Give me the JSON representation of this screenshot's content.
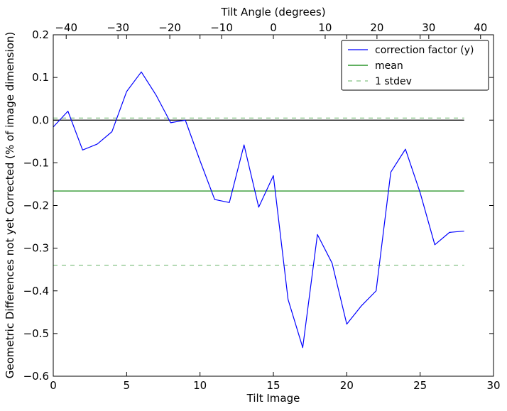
{
  "chart_data": {
    "type": "line",
    "title": "",
    "xlabel": "Tilt Image",
    "ylabel": "Geometric Differences not yet Corrected (% of image dimension)",
    "top_xlabel": "Tilt Angle (degrees)",
    "xlim": [
      0,
      30
    ],
    "ylim": [
      -0.6,
      0.2
    ],
    "top_xlim": [
      -42.5,
      42.5
    ],
    "x_ticks": [
      0,
      5,
      10,
      15,
      20,
      25,
      30
    ],
    "y_ticks": [
      -0.6,
      -0.5,
      -0.4,
      -0.3,
      -0.2,
      -0.1,
      0.0,
      0.1,
      0.2
    ],
    "top_x_ticks": [
      -40,
      -30,
      -20,
      -10,
      0,
      10,
      20,
      30,
      40
    ],
    "x_tick_labels": [
      "0",
      "5",
      "10",
      "15",
      "20",
      "25",
      "30"
    ],
    "y_tick_labels": [
      "−0.6",
      "−0.5",
      "−0.4",
      "−0.3",
      "−0.2",
      "−0.1",
      "0.0",
      "0.1",
      "0.2"
    ],
    "top_x_tick_labels": [
      "−40",
      "−30",
      "−20",
      "−10",
      "0",
      "10",
      "20",
      "30",
      "40"
    ],
    "grid": false,
    "legend_position": "top-right",
    "series": [
      {
        "name": "correction factor (y)",
        "color": "#0000ff",
        "style": "solid",
        "x": [
          0,
          1,
          2,
          3,
          4,
          5,
          6,
          7,
          8,
          9,
          10,
          11,
          12,
          13,
          14,
          15,
          16,
          17,
          18,
          19,
          20,
          21,
          22,
          23,
          24,
          25,
          26,
          27,
          28
        ],
        "values": [
          -0.016,
          0.021,
          -0.07,
          -0.056,
          -0.027,
          0.067,
          0.113,
          0.059,
          -0.006,
          0.0,
          -0.095,
          -0.186,
          -0.193,
          -0.058,
          -0.204,
          -0.13,
          -0.42,
          -0.533,
          -0.268,
          -0.335,
          -0.478,
          -0.435,
          -0.4,
          -0.122,
          -0.068,
          -0.17,
          -0.292,
          -0.263,
          -0.26
        ]
      },
      {
        "name": "mean",
        "color": "#008000",
        "style": "solid",
        "x": [
          0,
          28
        ],
        "values": [
          -0.166,
          -0.166
        ]
      },
      {
        "name": "1 stdev",
        "color": "#008000",
        "style": "dashed",
        "x": [
          0,
          28
        ],
        "values": [
          0.005,
          0.005
        ]
      },
      {
        "name": "",
        "legend": false,
        "color": "#008000",
        "style": "dashed",
        "x": [
          0,
          28
        ],
        "values": [
          -0.34,
          -0.34
        ]
      },
      {
        "name": "",
        "legend": false,
        "color": "#000000",
        "style": "solid",
        "x": [
          0,
          28
        ],
        "values": [
          0.0,
          0.0
        ]
      }
    ]
  }
}
